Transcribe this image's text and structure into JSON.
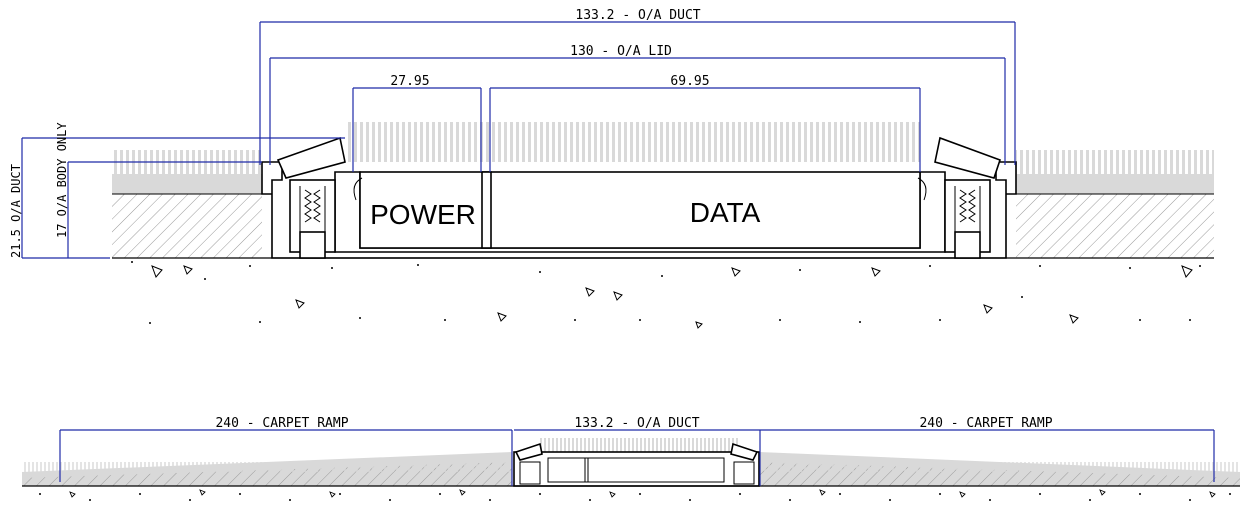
{
  "upper_section": {
    "duct_width_label": "133.2 - O/A DUCT",
    "lid_width_label": "130 - O/A LID",
    "power_width_label": "27.95",
    "data_width_label": "69.95",
    "duct_height_label": "21.5 O/A DUCT",
    "body_height_label": "17 O/A BODY ONLY",
    "power_compartment_label": "POWER",
    "data_compartment_label": "DATA"
  },
  "lower_section": {
    "left_ramp_label": "240 - CARPET RAMP",
    "duct_width_label": "133.2 - O/A DUCT",
    "right_ramp_label": "240 - CARPET RAMP"
  },
  "colors": {
    "dimension_line": "#1f2aa8",
    "carpet": "#d9d9d9",
    "hatch": "#9a9a9a"
  }
}
